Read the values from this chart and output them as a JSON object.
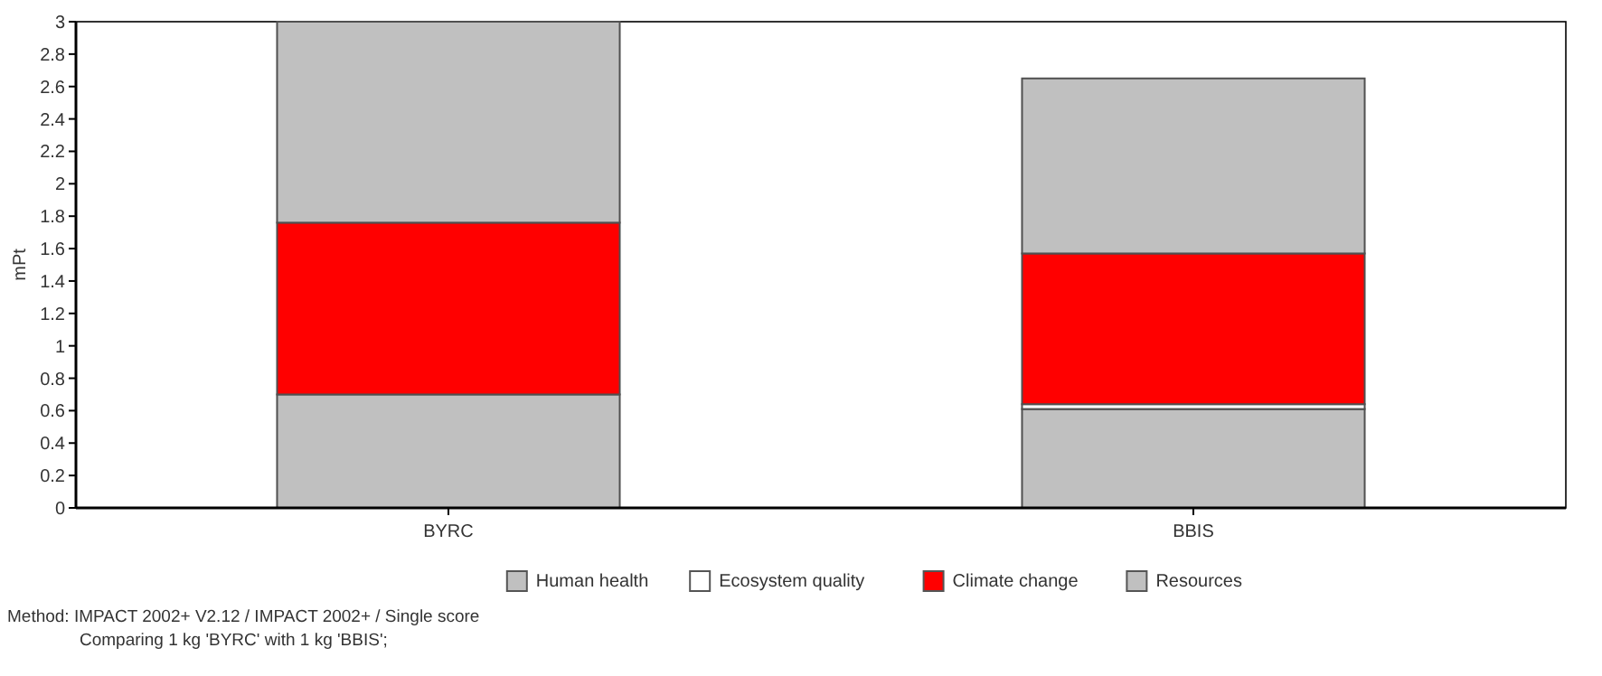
{
  "chart_data": {
    "type": "bar",
    "stacked": true,
    "ylabel": "mPt",
    "categories": [
      "BYRC",
      "BBIS"
    ],
    "series": [
      {
        "name": "Human health",
        "color": "#c0c0c0",
        "values": [
          0.7,
          0.61
        ]
      },
      {
        "name": "Ecosystem quality",
        "color": "#ffffff",
        "values": [
          null,
          0.03
        ]
      },
      {
        "name": "Climate change",
        "color": "#ff0000",
        "values": [
          1.06,
          0.93
        ]
      },
      {
        "name": "Resources",
        "color": "#c0c0c0",
        "values": [
          1.24,
          1.08
        ]
      }
    ],
    "ylim": [
      0,
      3
    ],
    "yticks": [
      0,
      0.2,
      0.4,
      0.6,
      0.8,
      1,
      1.2,
      1.4,
      1.6,
      1.8,
      2,
      2.2,
      2.4,
      2.6,
      2.8,
      3
    ],
    "grid": false,
    "legend": "bottom",
    "annotations": [
      "Method: IMPACT 2002+ V2.12 / IMPACT 2002+ / Single score",
      "Comparing 1 kg 'BYRC' with 1 kg 'BBIS';"
    ]
  }
}
